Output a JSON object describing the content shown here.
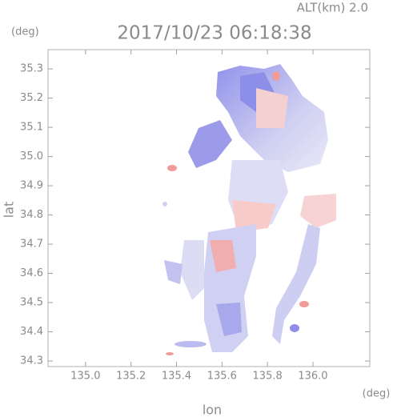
{
  "chart_data": {
    "type": "map",
    "title": "2017/10/23 06:18:38",
    "altitude_label": "ALT(km)  2.0",
    "xlabel": "lon",
    "ylabel": "lat",
    "xunit": "(deg)",
    "yunit": "(deg)",
    "xlim": [
      134.835,
      136.25
    ],
    "ylim": [
      34.281,
      35.366
    ],
    "xticks": [
      {
        "value": 135,
        "label": "135.0"
      },
      135.2,
      135.4,
      135.6,
      135.8,
      {
        "value": 136,
        "label": "136.0"
      }
    ],
    "yticks": [
      34.3,
      34.4,
      34.5,
      34.6,
      34.7,
      34.8,
      34.9,
      {
        "value": 35,
        "label": "35.0"
      },
      35.1,
      35.2,
      35.3
    ]
  }
}
